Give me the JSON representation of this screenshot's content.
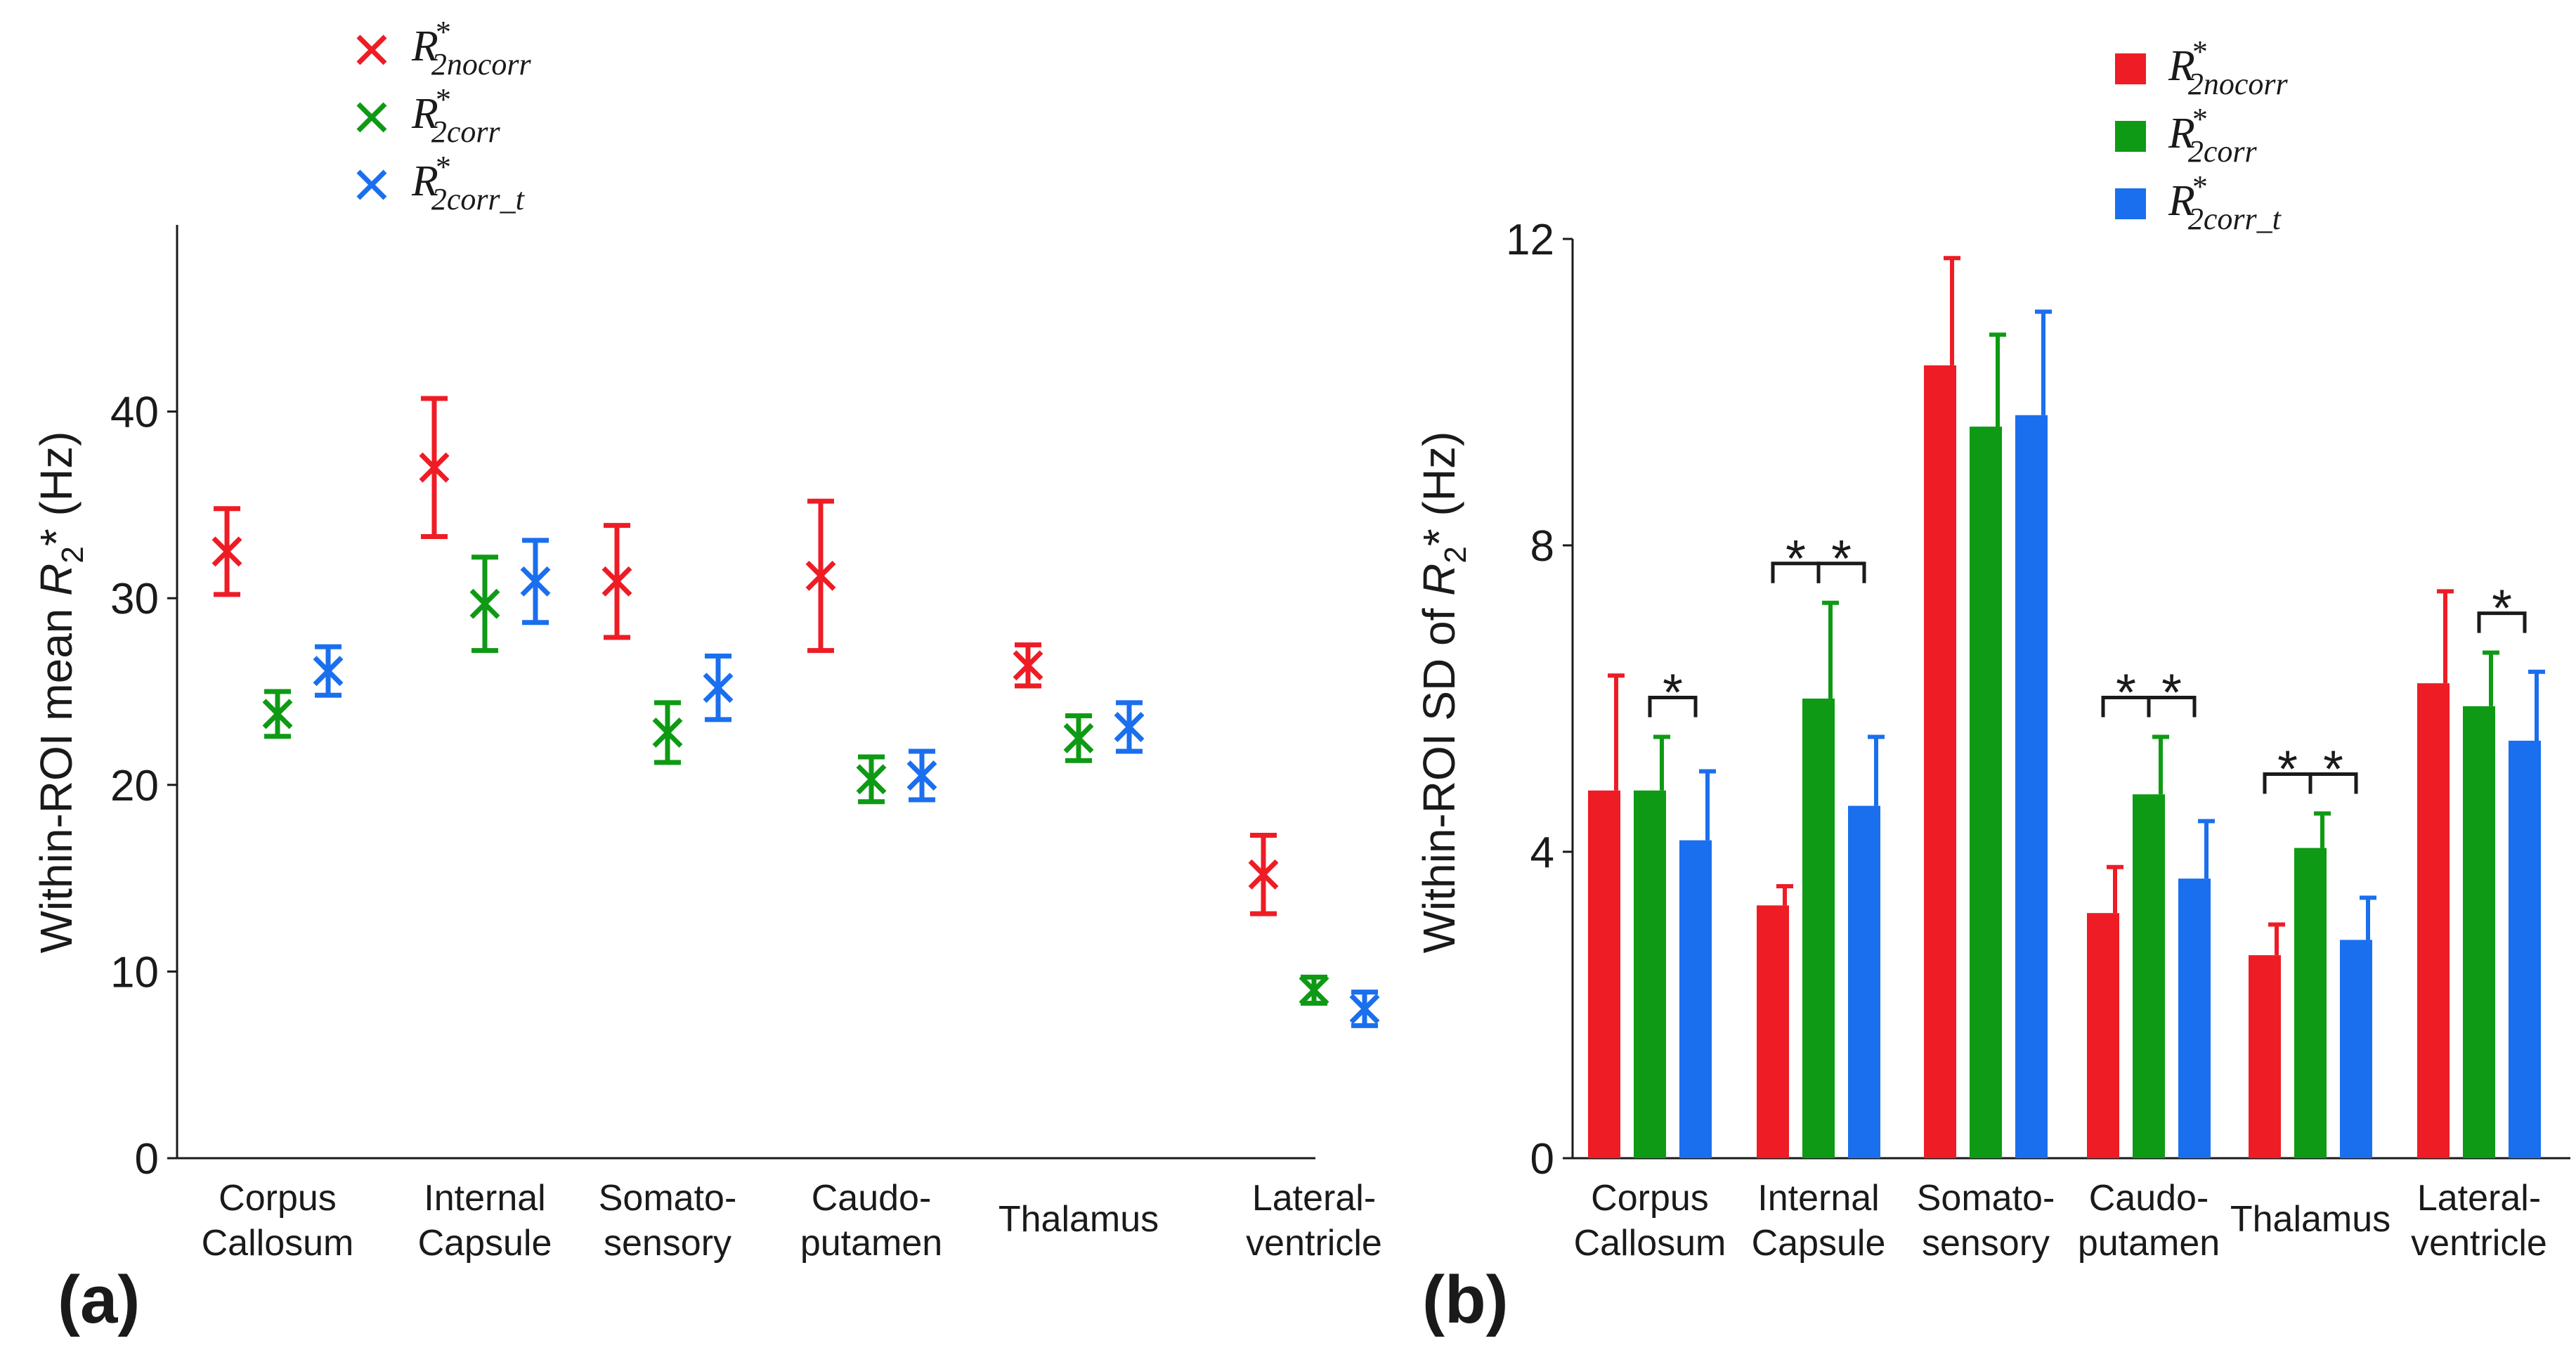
{
  "colors": {
    "nocorr": "#ee1c25",
    "corr": "#0e9a14",
    "corr_t": "#1a6fee"
  },
  "legend_items": [
    {
      "key": "nocorr",
      "base": "R",
      "sup": "*",
      "sub": "2nocorr"
    },
    {
      "key": "corr",
      "base": "R",
      "sup": "*",
      "sub": "2corr"
    },
    {
      "key": "corr_t",
      "base": "R",
      "sup": "*",
      "sub_a": "2corr_t",
      "sub_b": "2corr_t"
    }
  ],
  "chart_data": [
    {
      "type": "scatter",
      "panel_label": "(a)",
      "ylabel": {
        "pre": "Within-ROI mean ",
        "var": "R",
        "sub": "2",
        "post": "* (Hz)"
      },
      "ylim": [
        0,
        50
      ],
      "yticks": [
        0,
        10,
        20,
        30,
        40
      ],
      "categories": [
        [
          "Corpus",
          "Callosum"
        ],
        [
          "Internal",
          "Capsule"
        ],
        [
          "Somato-",
          "sensory"
        ],
        [
          "Caudo-",
          "putamen"
        ],
        [
          "Thalamus"
        ],
        [
          "Lateral-",
          "ventricle"
        ]
      ],
      "series": [
        {
          "key": "nocorr",
          "values": [
            32.5,
            37.0,
            30.9,
            31.2,
            26.4,
            15.2
          ],
          "errors": [
            2.3,
            3.7,
            3.0,
            4.0,
            1.1,
            2.1
          ]
        },
        {
          "key": "corr",
          "values": [
            23.8,
            29.7,
            22.8,
            20.3,
            22.5,
            9.0
          ],
          "errors": [
            1.2,
            2.5,
            1.6,
            1.2,
            1.2,
            0.7
          ]
        },
        {
          "key": "corr_t",
          "values": [
            26.1,
            30.9,
            25.2,
            20.5,
            23.1,
            8.0
          ],
          "errors": [
            1.3,
            2.2,
            1.7,
            1.3,
            1.3,
            0.9
          ]
        }
      ]
    },
    {
      "type": "bar",
      "panel_label": "(b)",
      "ylabel": {
        "pre": "Within-ROI SD of ",
        "var": "R",
        "sub": "2",
        "post": "* (Hz)"
      },
      "ylim": [
        0,
        12
      ],
      "yticks": [
        0,
        4,
        8,
        12
      ],
      "categories": [
        [
          "Corpus",
          "Callosum"
        ],
        [
          "Internal",
          "Capsule"
        ],
        [
          "Somato-",
          "sensory"
        ],
        [
          "Caudo-",
          "putamen"
        ],
        [
          "Thalamus"
        ],
        [
          "Lateral-",
          "ventricle"
        ]
      ],
      "series": [
        {
          "key": "nocorr",
          "values": [
            4.8,
            3.3,
            10.35,
            3.2,
            2.65,
            6.2
          ],
          "errors": [
            1.5,
            0.25,
            1.4,
            0.6,
            0.4,
            1.2
          ]
        },
        {
          "key": "corr",
          "values": [
            4.8,
            6.0,
            9.55,
            4.75,
            4.05,
            5.9
          ],
          "errors": [
            0.7,
            1.25,
            1.2,
            0.75,
            0.45,
            0.7
          ]
        },
        {
          "key": "corr_t",
          "values": [
            4.15,
            4.6,
            9.7,
            3.65,
            2.85,
            5.45
          ],
          "errors": [
            0.9,
            0.9,
            1.35,
            0.75,
            0.55,
            0.9
          ]
        }
      ],
      "significance": [
        {
          "category": 0,
          "pair": [
            1,
            2
          ],
          "label": "*"
        },
        {
          "category": 1,
          "pair": [
            0,
            1
          ],
          "label": "*"
        },
        {
          "category": 1,
          "pair": [
            1,
            2
          ],
          "label": "*"
        },
        {
          "category": 3,
          "pair": [
            0,
            1
          ],
          "label": "*"
        },
        {
          "category": 3,
          "pair": [
            1,
            2
          ],
          "label": "*"
        },
        {
          "category": 4,
          "pair": [
            0,
            1
          ],
          "label": "*"
        },
        {
          "category": 4,
          "pair": [
            1,
            2
          ],
          "label": "*"
        },
        {
          "category": 5,
          "pair": [
            1,
            2
          ],
          "label": "*"
        }
      ]
    }
  ]
}
